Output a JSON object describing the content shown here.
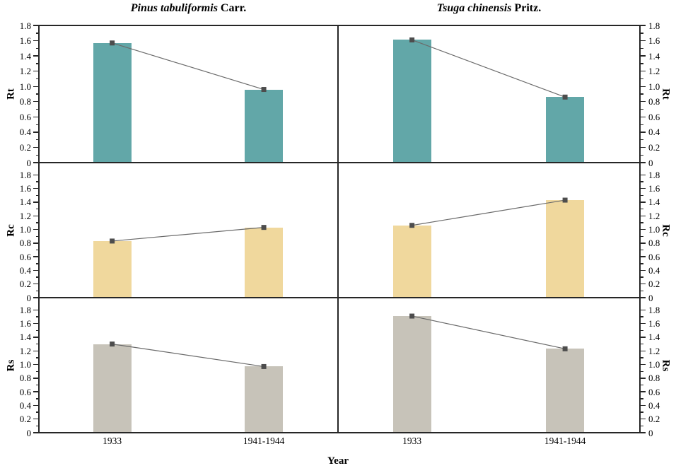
{
  "figure": {
    "x_axis_title": "Year",
    "background": "#ffffff"
  },
  "chart_data": {
    "type": "bar",
    "description": "2x3 grid of paired bar charts with connecting trend lines and square markers; columns are tree species, rows are ratio indices Rt, Rc, Rs",
    "categories": [
      "1933",
      "1941-1944"
    ],
    "columns": [
      {
        "title_species": "Pinus tabuliformis",
        "title_authority": "Carr."
      },
      {
        "title_species": "Tsuga chinensis",
        "title_authority": "Pritz."
      }
    ],
    "rows": [
      {
        "ylabel": "Rt",
        "bar_color": "#62a7a8",
        "series": [
          {
            "column": "Pinus tabuliformis Carr.",
            "values": [
              1.57,
              0.96
            ]
          },
          {
            "column": "Tsuga chinensis Pritz.",
            "values": [
              1.61,
              0.86
            ]
          }
        ]
      },
      {
        "ylabel": "Rc",
        "bar_color": "#f0d89d",
        "series": [
          {
            "column": "Pinus tabuliformis Carr.",
            "values": [
              0.83,
              1.03
            ]
          },
          {
            "column": "Tsuga chinensis Pritz.",
            "values": [
              1.06,
              1.43
            ]
          }
        ]
      },
      {
        "ylabel": "Rs",
        "bar_color": "#c7c3b9",
        "series": [
          {
            "column": "Pinus tabuliformis Carr.",
            "values": [
              1.3,
              0.97
            ]
          },
          {
            "column": "Tsuga chinensis Pritz.",
            "values": [
              1.71,
              1.23
            ]
          }
        ]
      }
    ],
    "xlabel": "Year",
    "ylim": [
      0,
      1.8
    ],
    "ytick_labels": [
      "0",
      "0.2",
      "0.4",
      "0.6",
      "0.8",
      "1.0",
      "1.2",
      "1.4",
      "1.6",
      "1.8"
    ],
    "minor_ytick_values": [
      0.1,
      0.3,
      0.5,
      0.7,
      0.9,
      1.1,
      1.3,
      1.5,
      1.7
    ],
    "grid": false,
    "legend": "none",
    "marker_shape": "square",
    "line_color": "#6b6b6b",
    "marker_color": "#4d4d4d",
    "axis_color": "#262626"
  }
}
